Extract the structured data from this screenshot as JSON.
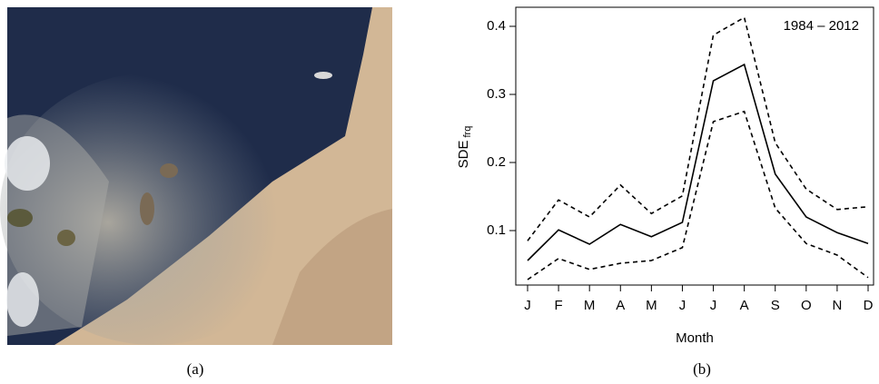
{
  "chart_data": {
    "type": "line",
    "annotation": "1984 – 2012",
    "xlabel": "Month",
    "ylabel": "SDE",
    "ylabel_subscript": "frq",
    "categories": [
      "J",
      "F",
      "M",
      "A",
      "M",
      "J",
      "J",
      "A",
      "S",
      "O",
      "N",
      "D"
    ],
    "series": [
      {
        "color": "#000000",
        "dash": "none",
        "values": [
          0.056,
          0.101,
          0.08,
          0.109,
          0.091,
          0.112,
          0.32,
          0.344,
          0.183,
          0.12,
          0.097,
          0.081
        ]
      },
      {
        "color": "#000000",
        "dash": "5,4",
        "values": [
          0.085,
          0.145,
          0.12,
          0.167,
          0.125,
          0.151,
          0.387,
          0.413,
          0.229,
          0.161,
          0.131,
          0.135
        ]
      },
      {
        "color": "#000000",
        "dash": "5,4",
        "values": [
          0.028,
          0.059,
          0.043,
          0.052,
          0.056,
          0.075,
          0.26,
          0.275,
          0.133,
          0.081,
          0.064,
          0.031
        ]
      }
    ],
    "ylim": [
      0.02,
      0.428
    ],
    "yticks": [
      0.1,
      0.2,
      0.3,
      0.4
    ],
    "grid": false
  },
  "captions": [
    "(a)",
    "(b)"
  ]
}
